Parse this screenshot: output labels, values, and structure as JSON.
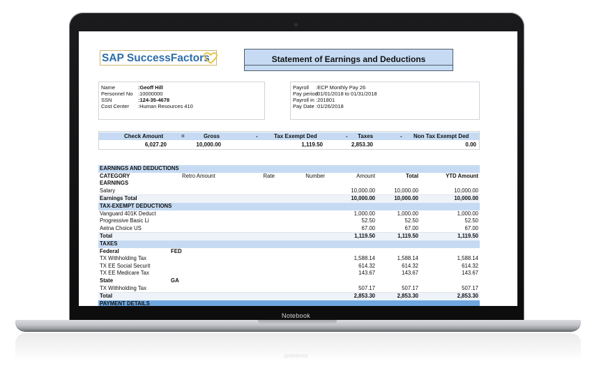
{
  "device": {
    "model_label": "Notebook"
  },
  "document": {
    "logo_text": "SAP SuccessFactors",
    "title": "Statement of Earnings and Deductions",
    "employee": [
      {
        "key": "Name",
        "value": ":Geoff Hill",
        "bold": true
      },
      {
        "key": "Personnel No",
        "value": ":10000000",
        "bold": false
      },
      {
        "key": "SSN",
        "value": ":124-35-4678",
        "bold": true
      },
      {
        "key": "Cost Center",
        "value": ":Human Resources 410",
        "bold": false
      }
    ],
    "payroll": [
      {
        "key": "Payroll",
        "value": ":ECP Monthly Pay 26"
      },
      {
        "key": "Pay period",
        "value": ":01/01/2018 to 01/31/2018"
      },
      {
        "key": "Payroll in",
        "value": ":201801"
      },
      {
        "key": "Pay Date",
        "value": ":01/26/2018"
      }
    ],
    "summary": {
      "headers": [
        "Check Amount",
        "=",
        "Gross",
        "-",
        "Tax Exempt Ded",
        "-",
        "Taxes",
        "-",
        "Non Tax Exempt Ded"
      ],
      "values": [
        "6,027.20",
        "10,000.00",
        "1,119.50",
        "2,853.30",
        "0.00"
      ]
    },
    "earnings_deductions": {
      "section_title": "EARNINGS AND DEDUCTIONS",
      "columns": [
        "CATEGORY",
        "Retro Amount",
        "Rate",
        "Number",
        "Amount",
        "Total",
        "YTD Amount"
      ],
      "rows": [
        {
          "type": "sub",
          "name": "EARNINGS"
        },
        {
          "type": "line",
          "name": "Salary",
          "amount": "10,000.00",
          "total": "10,000.00",
          "ytd": "10,000.00"
        },
        {
          "type": "total",
          "name": "Earnings Total",
          "amount": "10,000.00",
          "total": "10,000.00",
          "ytd": "10,000.00"
        },
        {
          "type": "band",
          "name": "TAX-EXEMPT DEDUCTIONS"
        },
        {
          "type": "line",
          "name": "Vanguard 401K Deduct",
          "amount": "1,000.00",
          "total": "1,000.00",
          "ytd": "1,000.00"
        },
        {
          "type": "line",
          "name": "Progressive Basic Li",
          "amount": "52.50",
          "total": "52.50",
          "ytd": "52.50"
        },
        {
          "type": "line",
          "name": "Aetna Choice US",
          "amount": "67.00",
          "total": "67.00",
          "ytd": "67.00"
        },
        {
          "type": "total",
          "name": "Total",
          "amount": "1,119.50",
          "total": "1,119.50",
          "ytd": "1,119.50"
        },
        {
          "type": "band",
          "name": "TAXES"
        },
        {
          "type": "sub",
          "name": "Federal",
          "code": "FED"
        },
        {
          "type": "line",
          "name": "TX Withholding Tax",
          "amount": "1,588.14",
          "total": "1,588.14",
          "ytd": "1,588.14"
        },
        {
          "type": "line",
          "name": "TX EE Social Securit",
          "amount": "614.32",
          "total": "614.32",
          "ytd": "614.32"
        },
        {
          "type": "line",
          "name": "TX EE Medicare Tax",
          "amount": "143.67",
          "total": "143.67",
          "ytd": "143.67"
        },
        {
          "type": "sub",
          "name": "State",
          "code": "GA"
        },
        {
          "type": "line",
          "name": "TX Withholding Tax",
          "amount": "507.17",
          "total": "507.17",
          "ytd": "507.17"
        },
        {
          "type": "total",
          "name": "Total",
          "amount": "2,853.30",
          "total": "2,853.30",
          "ytd": "2,853.30"
        },
        {
          "type": "band-dark",
          "name": "PAYMENT DETAILS"
        }
      ]
    }
  },
  "colors": {
    "band": "#c6dbf3",
    "band_dark": "#6fa8e0",
    "logo_blue": "#2c6dac",
    "heart_gold": "#e8c24a"
  }
}
